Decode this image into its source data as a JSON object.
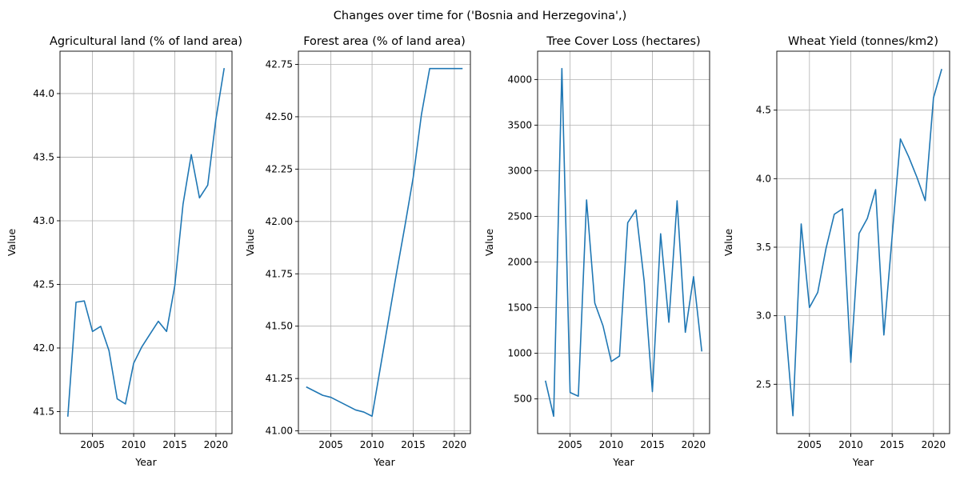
{
  "figure": {
    "suptitle": "Changes over time for ('Bosnia and Herzegovina',)"
  },
  "style": {
    "line_color": "#1f77b4",
    "grid_color": "#b0b0b0",
    "axis_color": "#000000"
  },
  "chart_data": [
    {
      "type": "line",
      "title": "Agricultural land (% of land area)",
      "xlabel": "Year",
      "ylabel": "Value",
      "grid": true,
      "xlim": [
        2001.05,
        2021.95
      ],
      "ylim": [
        41.327,
        44.333
      ],
      "xticks": [
        2005,
        2010,
        2015,
        2020
      ],
      "yticks": [
        41.5,
        42.0,
        42.5,
        43.0,
        43.5,
        44.0
      ],
      "ytick_labels": [
        "41.5",
        "42.0",
        "42.5",
        "43.0",
        "43.5",
        "44.0"
      ],
      "x": [
        2002,
        2003,
        2004,
        2005,
        2006,
        2007,
        2008,
        2009,
        2010,
        2011,
        2012,
        2013,
        2014,
        2015,
        2016,
        2017,
        2018,
        2019,
        2020,
        2021
      ],
      "values": [
        41.46,
        42.36,
        42.37,
        42.13,
        42.17,
        41.98,
        41.6,
        41.56,
        41.88,
        42.01,
        42.11,
        42.21,
        42.13,
        42.49,
        43.13,
        43.52,
        43.18,
        43.28,
        43.8,
        44.2
      ]
    },
    {
      "type": "line",
      "title": "Forest area (% of land area)",
      "xlabel": "Year",
      "ylabel": "Value",
      "grid": true,
      "xlim": [
        2001.05,
        2021.95
      ],
      "ylim": [
        40.987,
        42.813
      ],
      "xticks": [
        2005,
        2010,
        2015,
        2020
      ],
      "yticks": [
        41.0,
        41.25,
        41.5,
        41.75,
        42.0,
        42.25,
        42.5,
        42.75
      ],
      "ytick_labels": [
        "41.00",
        "41.25",
        "41.50",
        "41.75",
        "42.00",
        "42.25",
        "42.50",
        "42.75"
      ],
      "x": [
        2002,
        2003,
        2004,
        2005,
        2006,
        2007,
        2008,
        2009,
        2010,
        2011,
        2012,
        2013,
        2014,
        2015,
        2016,
        2017,
        2018,
        2019,
        2020,
        2021
      ],
      "values": [
        41.21,
        41.19,
        41.17,
        41.16,
        41.14,
        41.12,
        41.1,
        41.09,
        41.07,
        41.3,
        41.53,
        41.76,
        41.98,
        42.21,
        42.51,
        42.73,
        42.73,
        42.73,
        42.73,
        42.73
      ]
    },
    {
      "type": "line",
      "title": "Tree Cover Loss (hectares)",
      "xlabel": "Year",
      "ylabel": "Value",
      "grid": true,
      "xlim": [
        2001.05,
        2021.95
      ],
      "ylim": [
        120,
        4310
      ],
      "xticks": [
        2005,
        2010,
        2015,
        2020
      ],
      "yticks": [
        500,
        1000,
        1500,
        2000,
        2500,
        3000,
        3500,
        4000
      ],
      "ytick_labels": [
        "500",
        "1000",
        "1500",
        "2000",
        "2500",
        "3000",
        "3500",
        "4000"
      ],
      "x": [
        2002,
        2003,
        2004,
        2005,
        2006,
        2007,
        2008,
        2009,
        2010,
        2011,
        2012,
        2013,
        2014,
        2015,
        2016,
        2017,
        2018,
        2019,
        2020,
        2021
      ],
      "values": [
        700,
        310,
        4120,
        570,
        530,
        2680,
        1550,
        1300,
        910,
        970,
        2430,
        2570,
        1790,
        580,
        2310,
        1340,
        2670,
        1230,
        1840,
        1020
      ]
    },
    {
      "type": "line",
      "title": "Wheat Yield (tonnes/km2)",
      "xlabel": "Year",
      "ylabel": "Value",
      "grid": true,
      "xlim": [
        2001.05,
        2021.95
      ],
      "ylim": [
        2.14,
        4.93
      ],
      "xticks": [
        2005,
        2010,
        2015,
        2020
      ],
      "yticks": [
        2.5,
        3.0,
        3.5,
        4.0,
        4.5
      ],
      "ytick_labels": [
        "2.5",
        "3.0",
        "3.5",
        "4.0",
        "4.5"
      ],
      "x": [
        2002,
        2003,
        2004,
        2005,
        2006,
        2007,
        2008,
        2009,
        2010,
        2011,
        2012,
        2013,
        2014,
        2015,
        2016,
        2017,
        2018,
        2019,
        2020,
        2021
      ],
      "values": [
        3.0,
        2.27,
        3.67,
        3.06,
        3.17,
        3.49,
        3.74,
        3.78,
        2.66,
        3.6,
        3.71,
        3.92,
        2.86,
        3.58,
        4.29,
        4.16,
        4.01,
        3.84,
        4.59,
        4.8
      ]
    }
  ]
}
